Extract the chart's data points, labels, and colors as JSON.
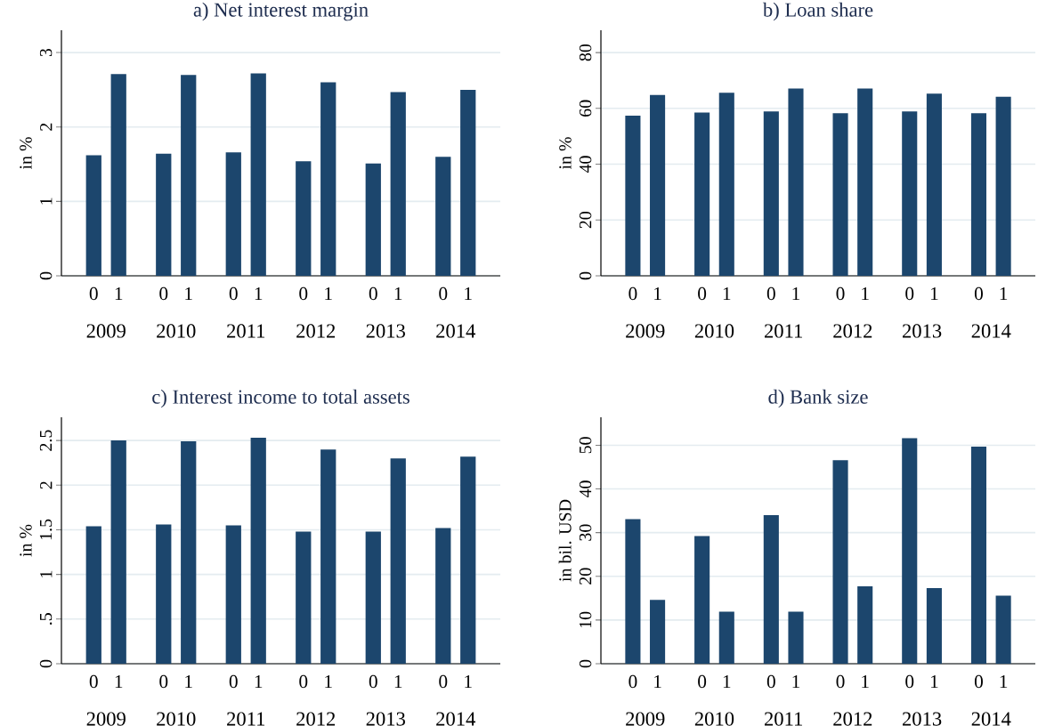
{
  "chart_data": [
    {
      "type": "bar",
      "title": "a) Net interest margin",
      "ylabel": "in %",
      "categories": [
        "2009",
        "2010",
        "2011",
        "2012",
        "2013",
        "2014"
      ],
      "series": [
        {
          "name": "0",
          "color": "#1c466d",
          "values": [
            1.62,
            1.64,
            1.66,
            1.54,
            1.51,
            1.6
          ]
        },
        {
          "name": "1",
          "color": "#1c466d",
          "values": [
            2.71,
            2.7,
            2.72,
            2.6,
            2.47,
            2.5
          ]
        }
      ],
      "ylim": [
        0,
        3.3
      ],
      "yticks": [
        0,
        1,
        2,
        3
      ],
      "grid": "y"
    },
    {
      "type": "bar",
      "title": "b) Loan share",
      "ylabel": "in %",
      "categories": [
        "2009",
        "2010",
        "2011",
        "2012",
        "2013",
        "2014"
      ],
      "series": [
        {
          "name": "0",
          "color": "#1c466d",
          "values": [
            57.4,
            58.5,
            58.9,
            58.3,
            58.9,
            58.3
          ]
        },
        {
          "name": "1",
          "color": "#1c466d",
          "values": [
            64.8,
            65.6,
            67.1,
            67.1,
            65.3,
            64.2
          ]
        }
      ],
      "ylim": [
        0,
        88
      ],
      "yticks": [
        0,
        20,
        40,
        60,
        80
      ],
      "grid": "y"
    },
    {
      "type": "bar",
      "title": "c) Interest income to total assets",
      "ylabel": "in %",
      "categories": [
        "2009",
        "2010",
        "2011",
        "2012",
        "2013",
        "2014"
      ],
      "series": [
        {
          "name": "0",
          "color": "#1c466d",
          "values": [
            1.54,
            1.56,
            1.55,
            1.48,
            1.48,
            1.52
          ]
        },
        {
          "name": "1",
          "color": "#1c466d",
          "values": [
            2.5,
            2.49,
            2.53,
            2.4,
            2.3,
            2.32
          ]
        }
      ],
      "ylim": [
        0,
        2.76
      ],
      "yticks": [
        0,
        {
          "value": 0.5,
          "label": ".5"
        },
        1,
        1.5,
        2,
        2.5
      ],
      "grid": "y"
    },
    {
      "type": "bar",
      "title": "d) Bank size",
      "ylabel": "in bil. USD",
      "categories": [
        "2009",
        "2010",
        "2011",
        "2012",
        "2013",
        "2014"
      ],
      "series": [
        {
          "name": "0",
          "color": "#1c466d",
          "values": [
            33.1,
            29.2,
            34.0,
            46.6,
            51.6,
            49.7
          ]
        },
        {
          "name": "1",
          "color": "#1c466d",
          "values": [
            14.6,
            11.9,
            11.9,
            17.7,
            17.3,
            15.6
          ]
        }
      ],
      "ylim": [
        0,
        56.4
      ],
      "yticks": [
        0,
        10,
        20,
        30,
        40,
        50
      ],
      "grid": "y"
    }
  ]
}
